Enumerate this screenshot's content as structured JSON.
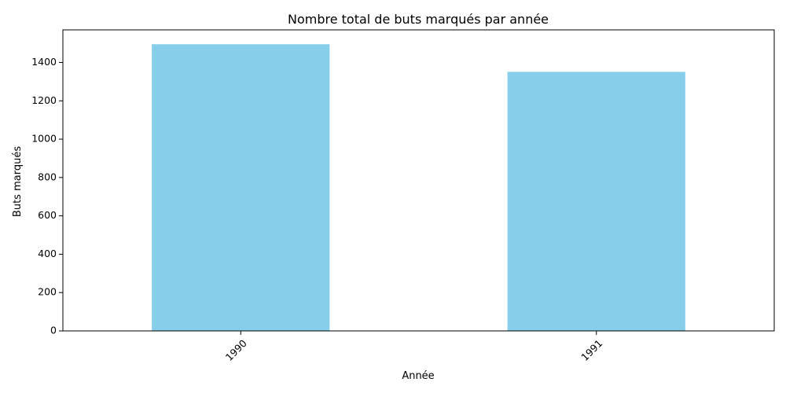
{
  "chart_data": {
    "type": "bar",
    "title": "Nombre total de buts marqués par année",
    "xlabel": "Année",
    "ylabel": "Buts marqués",
    "categories": [
      "1990",
      "1991"
    ],
    "values": [
      1495,
      1351
    ],
    "ylim": [
      0,
      1570
    ],
    "yticks": [
      0,
      200,
      400,
      600,
      800,
      1000,
      1200,
      1400
    ],
    "grid": false,
    "legend": "none",
    "bar_color": "#87ceeb",
    "xtick_rotation_deg": 45
  }
}
